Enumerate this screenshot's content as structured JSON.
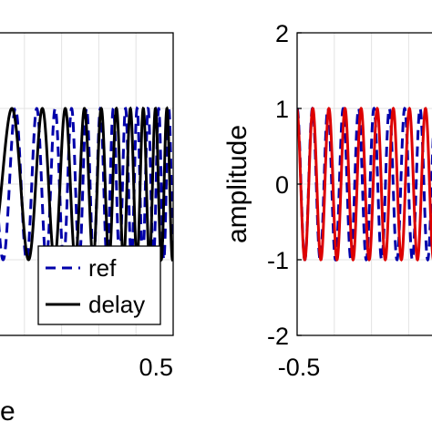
{
  "chart_data": [
    {
      "type": "line",
      "panel": "left",
      "xlim": [
        -0.5,
        0.5
      ],
      "ylim": [
        -2,
        2
      ],
      "xticks": [
        {
          "value": 0.5,
          "label": "0.5"
        }
      ],
      "yticks": [],
      "xlabel": "e",
      "ylabel": "",
      "grid": true,
      "legend_position": "bottom-right",
      "series": [
        {
          "name": "ref",
          "style": "dashed",
          "color": "#0000aa",
          "signal": "chirp",
          "amplitude": 1
        },
        {
          "name": "delay",
          "style": "solid",
          "color": "#000000",
          "signal": "chirp-delayed",
          "amplitude": 1
        }
      ]
    },
    {
      "type": "line",
      "panel": "right",
      "xlim": [
        -0.5,
        0.5
      ],
      "ylim": [
        -2,
        2
      ],
      "xticks": [
        {
          "value": -0.5,
          "label": "-0.5"
        }
      ],
      "yticks": [
        {
          "value": 2,
          "label": "2"
        },
        {
          "value": 1,
          "label": "1"
        },
        {
          "value": 0,
          "label": "0"
        },
        {
          "value": -1,
          "label": "-1"
        },
        {
          "value": -2,
          "label": "-2"
        }
      ],
      "xlabel": "",
      "ylabel": "amplitude",
      "grid": true,
      "series": [
        {
          "style": "dashed",
          "color": "#0000aa",
          "signal": "sinusoid",
          "amplitude": 1
        },
        {
          "style": "solid",
          "color": "#dd0000",
          "signal": "sinusoid",
          "amplitude": 1
        }
      ]
    }
  ]
}
